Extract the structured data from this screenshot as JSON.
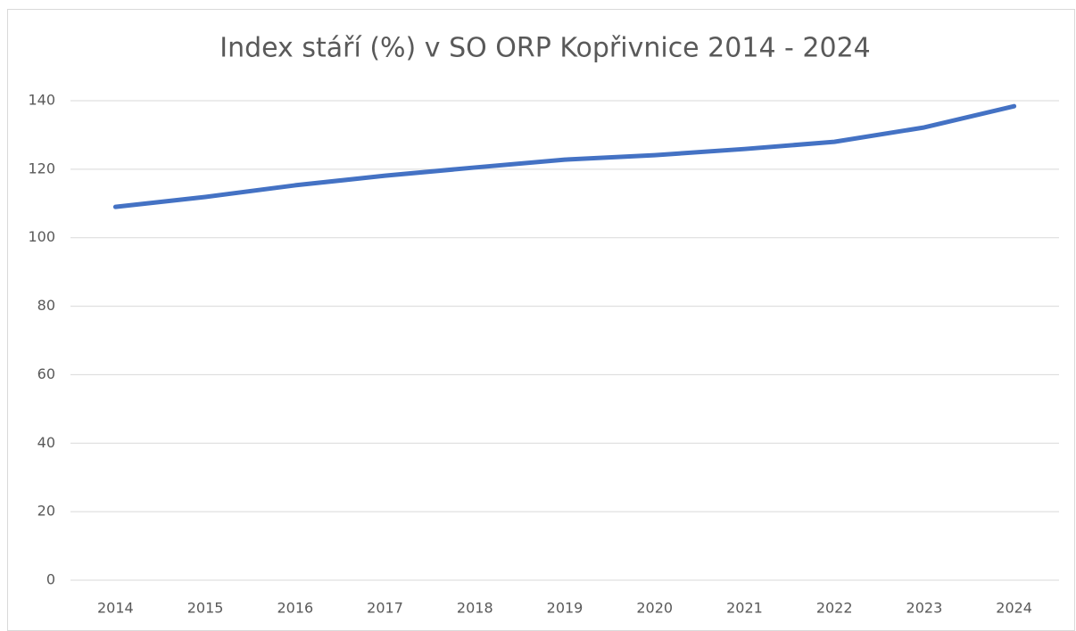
{
  "chart_data": {
    "type": "line",
    "title": "Index stáří (%) v SO ORP Kopřivnice 2014 - 2024",
    "categories": [
      "2014",
      "2015",
      "2016",
      "2017",
      "2018",
      "2019",
      "2020",
      "2021",
      "2022",
      "2023",
      "2024"
    ],
    "series": [
      {
        "name": "Index stáří",
        "color": "#4472c4",
        "values": [
          109.0,
          111.9,
          115.3,
          118.1,
          120.5,
          122.8,
          124.1,
          125.9,
          128.0,
          132.2,
          138.4
        ]
      }
    ],
    "ylim": [
      0,
      140
    ],
    "yticks": [
      0,
      20,
      40,
      60,
      80,
      100,
      120,
      140
    ],
    "grid": true
  }
}
